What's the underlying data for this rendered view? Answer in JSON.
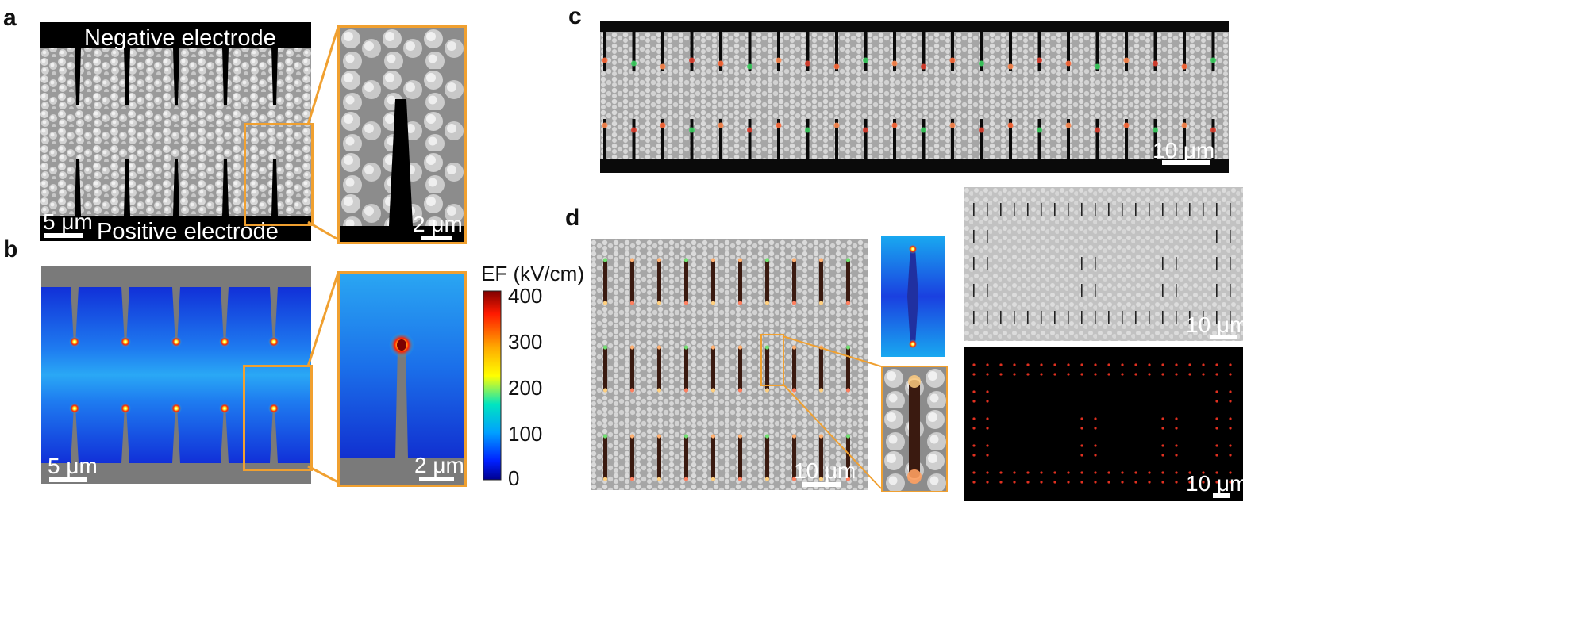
{
  "panels": {
    "a": {
      "letter": "a",
      "top_label": "Negative electrode",
      "bottom_label": "Positive electrode",
      "scale_main": "5 μm",
      "scale_inset": "2 μm"
    },
    "b": {
      "letter": "b",
      "scale_main": "5 μm",
      "scale_inset": "2 μm",
      "colorbar": {
        "title": "EF (kV/cm)",
        "ticks": [
          "400",
          "300",
          "200",
          "100",
          "0"
        ],
        "colormap": [
          "#7f0000",
          "#ff0000",
          "#ffaa00",
          "#ffff00",
          "#00e5c0",
          "#00a0ff",
          "#0020ff",
          "#00008f"
        ]
      }
    },
    "c": {
      "letter": "c",
      "scale": "10 μm"
    },
    "d": {
      "letter": "d",
      "scale_main": "10 μm",
      "scale_bright": "10 μm",
      "scale_fluor": "10 μm"
    }
  },
  "colors": {
    "accent_orange": "#f0a030",
    "electrode_gray": "#7a7a7a",
    "field_blue": "#1a3fd8"
  }
}
